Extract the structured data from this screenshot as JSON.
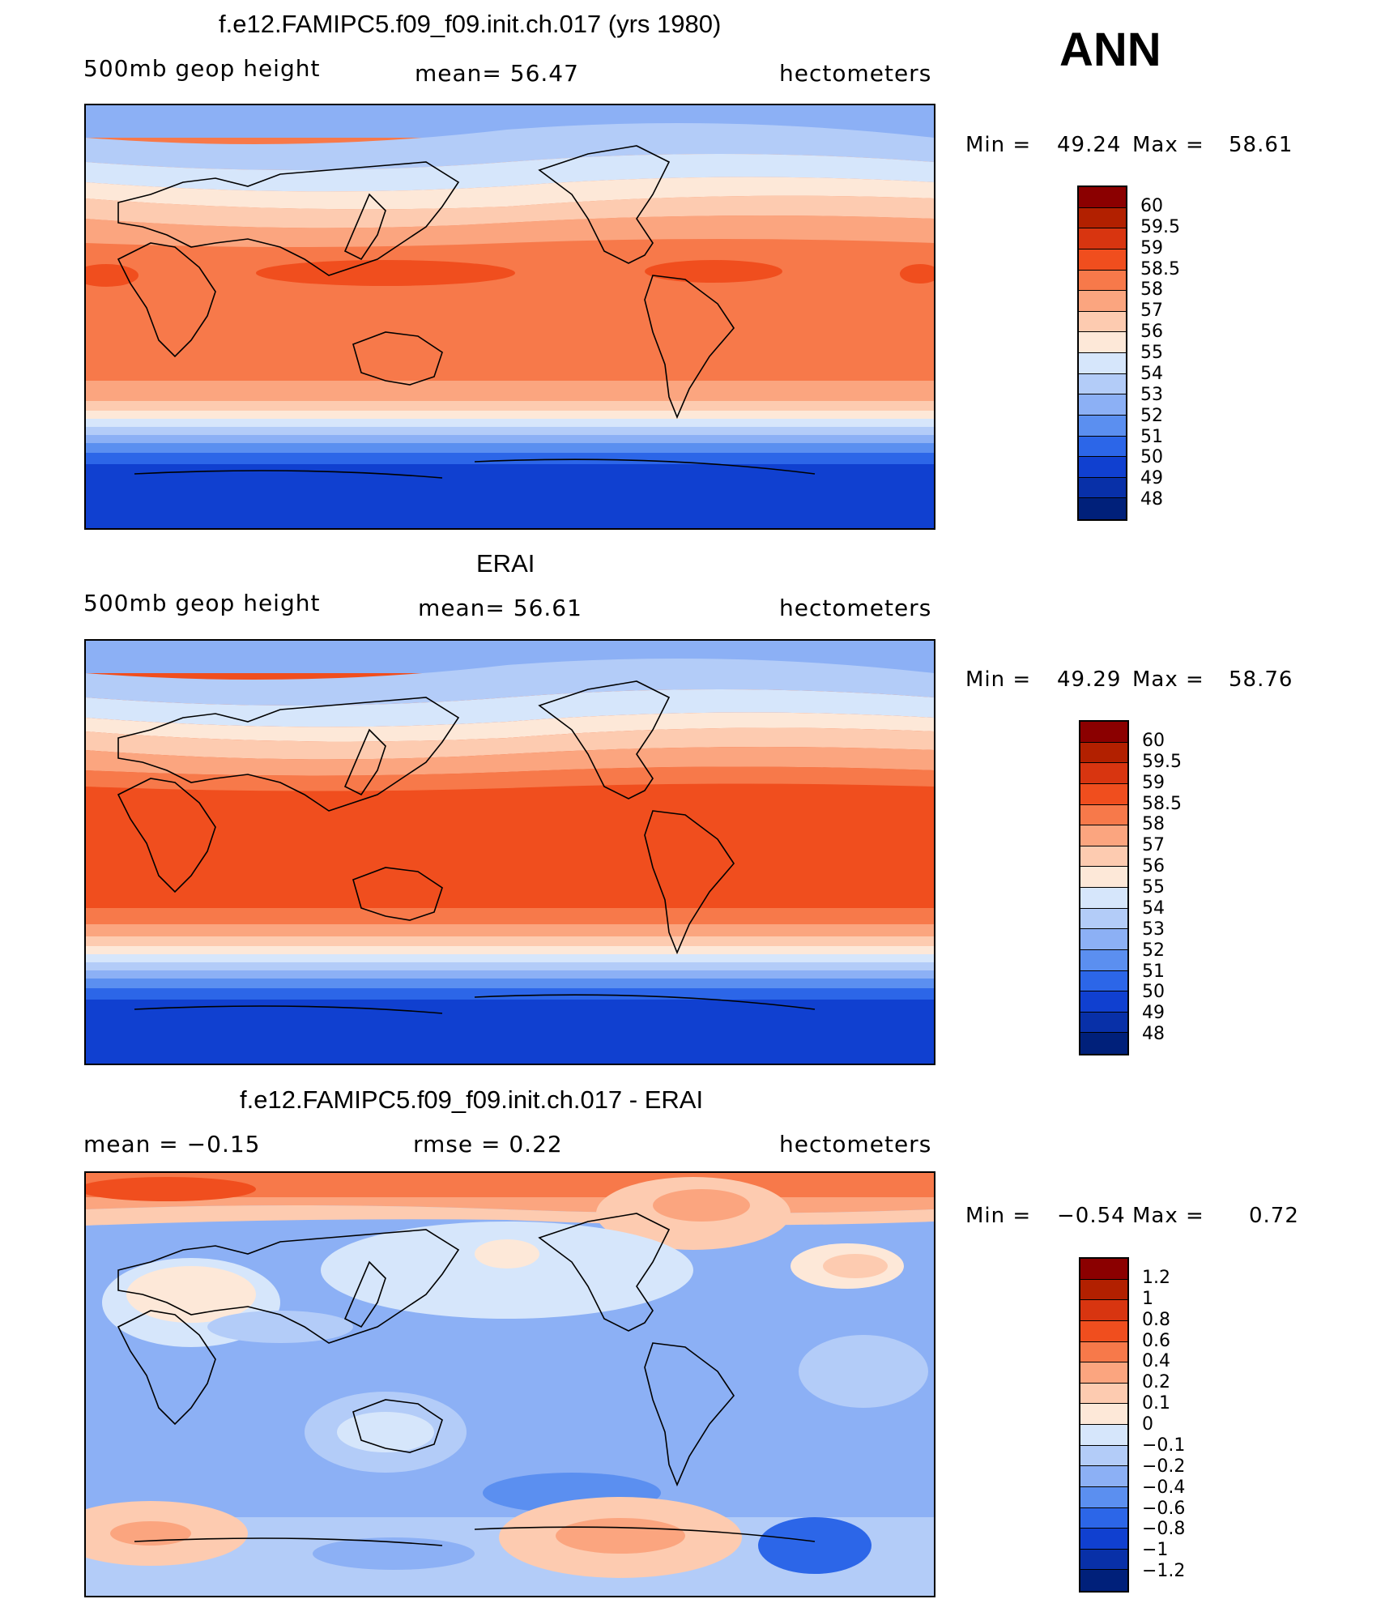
{
  "corner_label": "ANN",
  "panels": [
    {
      "title": "f.e12.FAMIPC5.f09_f09.init.ch.017 (yrs 1980)",
      "left_label": "500mb geop height",
      "center_label": "mean=  56.47",
      "right_label": "hectometers",
      "min_label": "Min =",
      "min_value": "49.24",
      "max_label": "Max =",
      "max_value": "58.61",
      "colorbar_labels": [
        "60",
        "59.5",
        "59",
        "58.5",
        "58",
        "57",
        "56",
        "55",
        "54",
        "53",
        "52",
        "51",
        "50",
        "49",
        "48"
      ],
      "colorbar_colors": [
        "#8b0000",
        "#b22000",
        "#d83510",
        "#f04e1e",
        "#f7794a",
        "#fba57f",
        "#fdcbb0",
        "#fde8d8",
        "#d6e6fb",
        "#b3ccf8",
        "#8cb0f5",
        "#5b8ff0",
        "#2c66e8",
        "#1040d0",
        "#0830a8",
        "#00207a"
      ]
    },
    {
      "title": "ERAI",
      "left_label": "500mb geop height",
      "center_label": "mean=  56.61",
      "right_label": "hectometers",
      "min_label": "Min =",
      "min_value": "49.29",
      "max_label": "Max =",
      "max_value": "58.76",
      "colorbar_labels": [
        "60",
        "59.5",
        "59",
        "58.5",
        "58",
        "57",
        "56",
        "55",
        "54",
        "53",
        "52",
        "51",
        "50",
        "49",
        "48"
      ],
      "colorbar_colors": [
        "#8b0000",
        "#b22000",
        "#d83510",
        "#f04e1e",
        "#f7794a",
        "#fba57f",
        "#fdcbb0",
        "#fde8d8",
        "#d6e6fb",
        "#b3ccf8",
        "#8cb0f5",
        "#5b8ff0",
        "#2c66e8",
        "#1040d0",
        "#0830a8",
        "#00207a"
      ]
    },
    {
      "title": "f.e12.FAMIPC5.f09_f09.init.ch.017 - ERAI",
      "left_label": "mean =   −0.15",
      "center_label": "rmse =    0.22",
      "right_label": "hectometers",
      "min_label": "Min =",
      "min_value": "−0.54",
      "max_label": "Max =",
      "max_value": "0.72",
      "colorbar_labels": [
        "1.2",
        "1",
        "0.8",
        "0.6",
        "0.4",
        "0.2",
        "0.1",
        "0",
        "−0.1",
        "−0.2",
        "−0.4",
        "−0.6",
        "−0.8",
        "−1",
        "−1.2"
      ],
      "colorbar_colors": [
        "#8b0000",
        "#b22000",
        "#d83510",
        "#f04e1e",
        "#f7794a",
        "#fba57f",
        "#fdcbb0",
        "#fde8d8",
        "#d6e6fb",
        "#b3ccf8",
        "#8cb0f5",
        "#5b8ff0",
        "#2c66e8",
        "#1040d0",
        "#0830a8",
        "#00207a"
      ]
    }
  ]
}
